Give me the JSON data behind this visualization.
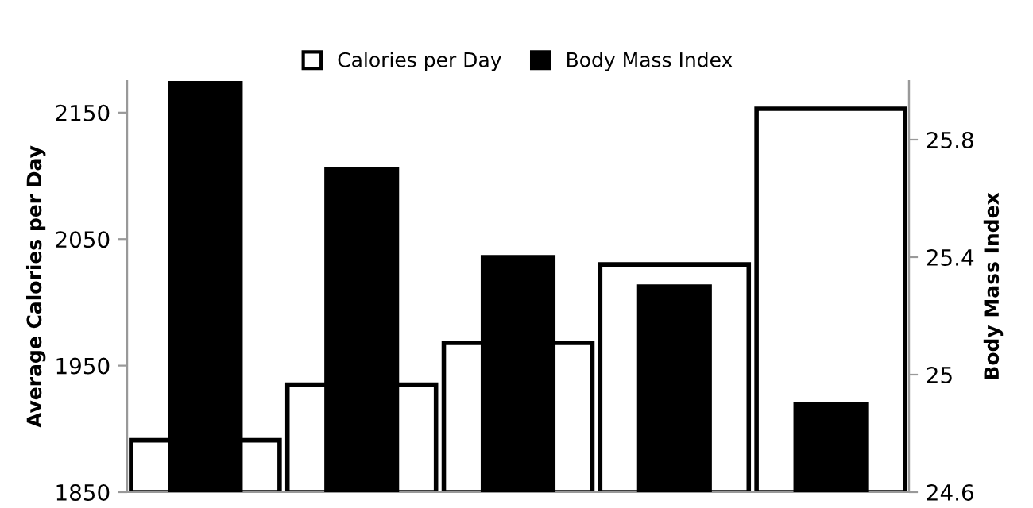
{
  "chart_data": {
    "type": "bar",
    "categories": [
      null,
      null,
      null,
      null,
      null
    ],
    "ylabel": "Average Calories per Day",
    "y2label": "Body Mass Index",
    "ylim": [
      1850,
      2175
    ],
    "yticks": [
      1850,
      1950,
      2050,
      2150
    ],
    "y2lim": [
      24.6,
      26.0
    ],
    "y2ticks": [
      24.6,
      25,
      25.4,
      25.8
    ],
    "series": [
      {
        "name": "Calories per Day",
        "color": "#ffffff",
        "values": [
          1891,
          1935,
          1968,
          2030,
          2153
        ]
      },
      {
        "name": "Body Mass Index",
        "color": "#000000",
        "axis": "y2",
        "values": [
          26.0,
          25.7,
          25.4,
          25.3,
          24.9
        ]
      }
    ],
    "legend": "top",
    "grid": false
  }
}
